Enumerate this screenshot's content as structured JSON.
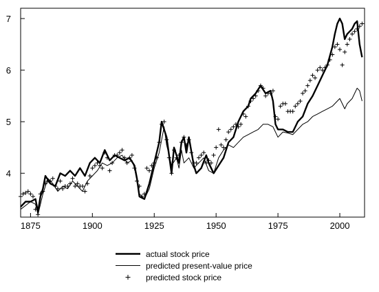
{
  "chart_data": {
    "type": "line",
    "title": "",
    "xlabel": "",
    "ylabel": "",
    "xlim": [
      1871,
      2010
    ],
    "ylim": [
      3.15,
      7.2
    ],
    "x_ticks": [
      1875,
      1900,
      1925,
      1950,
      1975,
      2000
    ],
    "y_ticks": [
      4,
      5,
      6,
      7
    ],
    "grid": false,
    "legend_position": "bottom-center",
    "series": [
      {
        "name": "actual stock price",
        "style": "thick-line",
        "color": "#000000",
        "points": [
          [
            1871,
            3.35
          ],
          [
            1873,
            3.45
          ],
          [
            1875,
            3.45
          ],
          [
            1877,
            3.5
          ],
          [
            1878,
            3.25
          ],
          [
            1879,
            3.55
          ],
          [
            1880,
            3.7
          ],
          [
            1881,
            3.95
          ],
          [
            1883,
            3.8
          ],
          [
            1885,
            3.75
          ],
          [
            1887,
            4.0
          ],
          [
            1889,
            3.95
          ],
          [
            1891,
            4.05
          ],
          [
            1893,
            3.95
          ],
          [
            1895,
            4.1
          ],
          [
            1897,
            3.95
          ],
          [
            1899,
            4.2
          ],
          [
            1901,
            4.3
          ],
          [
            1903,
            4.2
          ],
          [
            1905,
            4.45
          ],
          [
            1907,
            4.25
          ],
          [
            1909,
            4.35
          ],
          [
            1911,
            4.3
          ],
          [
            1913,
            4.25
          ],
          [
            1915,
            4.3
          ],
          [
            1917,
            4.15
          ],
          [
            1918,
            3.9
          ],
          [
            1919,
            3.55
          ],
          [
            1921,
            3.5
          ],
          [
            1923,
            3.8
          ],
          [
            1925,
            4.2
          ],
          [
            1927,
            4.6
          ],
          [
            1928,
            5.0
          ],
          [
            1930,
            4.7
          ],
          [
            1932,
            4.0
          ],
          [
            1933,
            4.5
          ],
          [
            1935,
            4.2
          ],
          [
            1936,
            4.6
          ],
          [
            1937,
            4.7
          ],
          [
            1938,
            4.4
          ],
          [
            1939,
            4.7
          ],
          [
            1941,
            4.15
          ],
          [
            1942,
            4.0
          ],
          [
            1944,
            4.1
          ],
          [
            1946,
            4.35
          ],
          [
            1947,
            4.2
          ],
          [
            1949,
            4.0
          ],
          [
            1951,
            4.15
          ],
          [
            1953,
            4.3
          ],
          [
            1955,
            4.6
          ],
          [
            1957,
            4.7
          ],
          [
            1959,
            5.0
          ],
          [
            1961,
            5.2
          ],
          [
            1963,
            5.3
          ],
          [
            1964,
            5.45
          ],
          [
            1966,
            5.55
          ],
          [
            1968,
            5.7
          ],
          [
            1970,
            5.55
          ],
          [
            1972,
            5.6
          ],
          [
            1973,
            5.4
          ],
          [
            1974,
            4.95
          ],
          [
            1975,
            4.85
          ],
          [
            1977,
            4.85
          ],
          [
            1979,
            4.8
          ],
          [
            1981,
            4.8
          ],
          [
            1983,
            5.0
          ],
          [
            1985,
            5.1
          ],
          [
            1987,
            5.35
          ],
          [
            1989,
            5.5
          ],
          [
            1991,
            5.7
          ],
          [
            1993,
            5.9
          ],
          [
            1995,
            6.1
          ],
          [
            1997,
            6.45
          ],
          [
            1998,
            6.7
          ],
          [
            1999,
            6.9
          ],
          [
            2000,
            7.0
          ],
          [
            2001,
            6.9
          ],
          [
            2002,
            6.6
          ],
          [
            2003,
            6.7
          ],
          [
            2004,
            6.75
          ],
          [
            2005,
            6.8
          ],
          [
            2006,
            6.9
          ],
          [
            2007,
            6.95
          ],
          [
            2008,
            6.5
          ],
          [
            2009,
            6.25
          ]
        ]
      },
      {
        "name": "predicted present-value price",
        "style": "thin-line",
        "color": "#000000",
        "points": [
          [
            1871,
            3.3
          ],
          [
            1875,
            3.45
          ],
          [
            1877,
            3.4
          ],
          [
            1878,
            3.2
          ],
          [
            1880,
            3.6
          ],
          [
            1882,
            3.9
          ],
          [
            1884,
            3.8
          ],
          [
            1886,
            3.65
          ],
          [
            1888,
            3.75
          ],
          [
            1890,
            3.7
          ],
          [
            1892,
            3.85
          ],
          [
            1894,
            3.75
          ],
          [
            1896,
            3.65
          ],
          [
            1898,
            3.85
          ],
          [
            1900,
            3.95
          ],
          [
            1902,
            4.05
          ],
          [
            1904,
            4.2
          ],
          [
            1906,
            4.15
          ],
          [
            1908,
            4.2
          ],
          [
            1910,
            4.3
          ],
          [
            1912,
            4.35
          ],
          [
            1914,
            4.2
          ],
          [
            1916,
            4.25
          ],
          [
            1917,
            4.1
          ],
          [
            1918,
            3.85
          ],
          [
            1919,
            3.6
          ],
          [
            1921,
            3.5
          ],
          [
            1923,
            3.7
          ],
          [
            1925,
            4.1
          ],
          [
            1927,
            4.4
          ],
          [
            1929,
            4.9
          ],
          [
            1930,
            4.55
          ],
          [
            1932,
            4.15
          ],
          [
            1934,
            4.3
          ],
          [
            1935,
            4.1
          ],
          [
            1936,
            4.45
          ],
          [
            1937,
            4.2
          ],
          [
            1939,
            4.3
          ],
          [
            1941,
            4.1
          ],
          [
            1943,
            4.2
          ],
          [
            1945,
            4.3
          ],
          [
            1947,
            4.05
          ],
          [
            1949,
            4.0
          ],
          [
            1951,
            4.3
          ],
          [
            1953,
            4.45
          ],
          [
            1955,
            4.55
          ],
          [
            1957,
            4.5
          ],
          [
            1959,
            4.6
          ],
          [
            1961,
            4.7
          ],
          [
            1963,
            4.75
          ],
          [
            1965,
            4.8
          ],
          [
            1967,
            4.85
          ],
          [
            1969,
            4.95
          ],
          [
            1971,
            4.95
          ],
          [
            1973,
            4.9
          ],
          [
            1975,
            4.7
          ],
          [
            1977,
            4.8
          ],
          [
            1979,
            4.78
          ],
          [
            1981,
            4.75
          ],
          [
            1983,
            4.85
          ],
          [
            1985,
            4.95
          ],
          [
            1987,
            5.0
          ],
          [
            1989,
            5.1
          ],
          [
            1991,
            5.15
          ],
          [
            1993,
            5.2
          ],
          [
            1995,
            5.25
          ],
          [
            1997,
            5.3
          ],
          [
            1999,
            5.4
          ],
          [
            2000,
            5.45
          ],
          [
            2001,
            5.35
          ],
          [
            2002,
            5.25
          ],
          [
            2003,
            5.35
          ],
          [
            2004,
            5.4
          ],
          [
            2005,
            5.45
          ],
          [
            2006,
            5.55
          ],
          [
            2007,
            5.65
          ],
          [
            2008,
            5.6
          ],
          [
            2009,
            5.4
          ]
        ]
      },
      {
        "name": "predicted stock price",
        "style": "plus-markers",
        "color": "#000000",
        "points": [
          [
            1871,
            3.55
          ],
          [
            1872,
            3.6
          ],
          [
            1873,
            3.62
          ],
          [
            1874,
            3.65
          ],
          [
            1875,
            3.6
          ],
          [
            1876,
            3.55
          ],
          [
            1877,
            3.3
          ],
          [
            1878,
            3.2
          ],
          [
            1879,
            3.6
          ],
          [
            1880,
            3.65
          ],
          [
            1881,
            3.8
          ],
          [
            1882,
            3.85
          ],
          [
            1883,
            3.85
          ],
          [
            1884,
            3.9
          ],
          [
            1885,
            3.75
          ],
          [
            1886,
            3.7
          ],
          [
            1887,
            3.85
          ],
          [
            1888,
            3.7
          ],
          [
            1889,
            3.75
          ],
          [
            1890,
            3.75
          ],
          [
            1891,
            3.8
          ],
          [
            1892,
            3.9
          ],
          [
            1893,
            3.75
          ],
          [
            1894,
            3.8
          ],
          [
            1895,
            3.75
          ],
          [
            1896,
            3.75
          ],
          [
            1897,
            3.65
          ],
          [
            1898,
            3.8
          ],
          [
            1899,
            3.95
          ],
          [
            1900,
            4.1
          ],
          [
            1901,
            4.15
          ],
          [
            1902,
            4.2
          ],
          [
            1903,
            4.15
          ],
          [
            1904,
            4.1
          ],
          [
            1905,
            4.4
          ],
          [
            1906,
            4.3
          ],
          [
            1907,
            4.05
          ],
          [
            1908,
            4.2
          ],
          [
            1909,
            4.35
          ],
          [
            1910,
            4.35
          ],
          [
            1911,
            4.4
          ],
          [
            1912,
            4.45
          ],
          [
            1913,
            4.3
          ],
          [
            1914,
            4.2
          ],
          [
            1915,
            4.3
          ],
          [
            1916,
            4.35
          ],
          [
            1917,
            4.1
          ],
          [
            1918,
            3.85
          ],
          [
            1919,
            3.75
          ],
          [
            1920,
            3.55
          ],
          [
            1921,
            3.6
          ],
          [
            1922,
            4.1
          ],
          [
            1923,
            4.05
          ],
          [
            1924,
            4.15
          ],
          [
            1925,
            4.2
          ],
          [
            1926,
            4.3
          ],
          [
            1927,
            4.6
          ],
          [
            1928,
            4.95
          ],
          [
            1929,
            5.0
          ],
          [
            1930,
            4.65
          ],
          [
            1931,
            4.3
          ],
          [
            1932,
            4.0
          ],
          [
            1933,
            4.45
          ],
          [
            1934,
            4.3
          ],
          [
            1935,
            4.35
          ],
          [
            1936,
            4.6
          ],
          [
            1937,
            4.7
          ],
          [
            1938,
            4.55
          ],
          [
            1939,
            4.65
          ],
          [
            1940,
            4.4
          ],
          [
            1941,
            4.2
          ],
          [
            1942,
            4.2
          ],
          [
            1943,
            4.3
          ],
          [
            1944,
            4.35
          ],
          [
            1945,
            4.4
          ],
          [
            1946,
            4.2
          ],
          [
            1947,
            4.25
          ],
          [
            1948,
            4.2
          ],
          [
            1949,
            4.35
          ],
          [
            1950,
            4.5
          ],
          [
            1951,
            4.85
          ],
          [
            1952,
            4.55
          ],
          [
            1953,
            4.5
          ],
          [
            1954,
            4.65
          ],
          [
            1955,
            4.8
          ],
          [
            1956,
            4.85
          ],
          [
            1957,
            4.9
          ],
          [
            1958,
            4.95
          ],
          [
            1959,
            4.9
          ],
          [
            1960,
            4.95
          ],
          [
            1961,
            5.15
          ],
          [
            1962,
            5.1
          ],
          [
            1963,
            5.3
          ],
          [
            1964,
            5.4
          ],
          [
            1965,
            5.45
          ],
          [
            1966,
            5.5
          ],
          [
            1967,
            5.6
          ],
          [
            1968,
            5.7
          ],
          [
            1969,
            5.65
          ],
          [
            1970,
            5.5
          ],
          [
            1971,
            5.55
          ],
          [
            1972,
            5.55
          ],
          [
            1973,
            5.6
          ],
          [
            1974,
            5.1
          ],
          [
            1975,
            5.05
          ],
          [
            1976,
            5.3
          ],
          [
            1977,
            5.35
          ],
          [
            1978,
            5.35
          ],
          [
            1979,
            5.2
          ],
          [
            1980,
            5.2
          ],
          [
            1981,
            5.2
          ],
          [
            1982,
            5.3
          ],
          [
            1983,
            5.35
          ],
          [
            1984,
            5.4
          ],
          [
            1985,
            5.55
          ],
          [
            1986,
            5.6
          ],
          [
            1987,
            5.7
          ],
          [
            1988,
            5.8
          ],
          [
            1989,
            5.9
          ],
          [
            1990,
            5.85
          ],
          [
            1991,
            6.0
          ],
          [
            1992,
            6.05
          ],
          [
            1993,
            6.0
          ],
          [
            1994,
            6.05
          ],
          [
            1995,
            6.1
          ],
          [
            1996,
            6.2
          ],
          [
            1997,
            6.3
          ],
          [
            1998,
            6.45
          ],
          [
            1999,
            6.5
          ],
          [
            2000,
            6.4
          ],
          [
            2001,
            6.1
          ],
          [
            2002,
            6.35
          ],
          [
            2003,
            6.5
          ],
          [
            2004,
            6.6
          ],
          [
            2005,
            6.7
          ],
          [
            2006,
            6.75
          ],
          [
            2007,
            6.8
          ],
          [
            2008,
            6.85
          ],
          [
            2009,
            6.9
          ]
        ]
      }
    ]
  }
}
